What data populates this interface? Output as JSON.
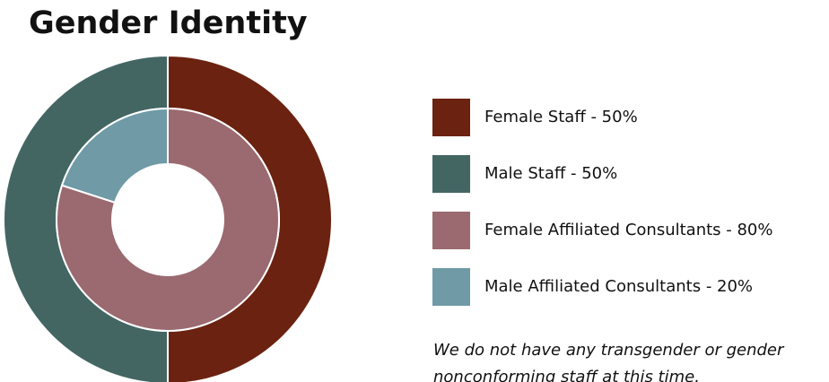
{
  "chart_data": {
    "type": "pie",
    "title": "Gender Identity",
    "rings": [
      {
        "values": [
          50,
          50
        ],
        "colors": [
          "#6b2210",
          "#436663"
        ],
        "labels": [
          "Female Staff - 50%",
          "Male Staff - 50%"
        ]
      },
      {
        "values": [
          80,
          20
        ],
        "colors": [
          "#9a6a70",
          "#6f9aa6"
        ],
        "labels": [
          "Female Affiliated Consultants - 80%",
          "Male Affiliated Consultants - 20%"
        ]
      }
    ],
    "note": "We do not have any transgender or gender nonconforming staff at this time."
  }
}
